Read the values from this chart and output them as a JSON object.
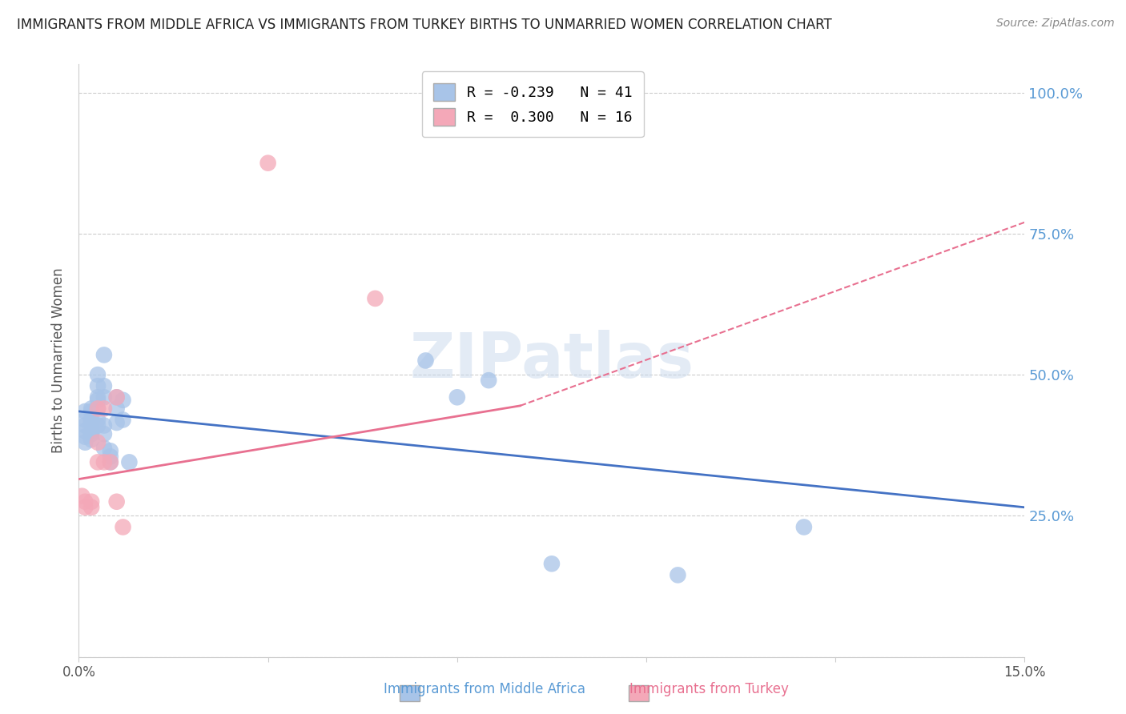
{
  "title": "IMMIGRANTS FROM MIDDLE AFRICA VS IMMIGRANTS FROM TURKEY BIRTHS TO UNMARRIED WOMEN CORRELATION CHART",
  "source": "Source: ZipAtlas.com",
  "ylabel": "Births to Unmarried Women",
  "y_ticks": [
    0.0,
    0.25,
    0.5,
    0.75,
    1.0
  ],
  "y_tick_labels_right": [
    "",
    "25.0%",
    "50.0%",
    "75.0%",
    "100.0%"
  ],
  "x_range": [
    0.0,
    0.15
  ],
  "y_range": [
    0.0,
    1.05
  ],
  "legend_blue_r": "R = -0.239",
  "legend_blue_n": "N = 41",
  "legend_pink_r": "R =  0.300",
  "legend_pink_n": "N = 16",
  "legend_blue_label": "Immigrants from Middle Africa",
  "legend_pink_label": "Immigrants from Turkey",
  "blue_color": "#a8c4e8",
  "pink_color": "#f4a8b8",
  "blue_line_color": "#4472c4",
  "pink_line_color": "#e87090",
  "watermark": "ZIPatlas",
  "blue_dots": [
    [
      0.001,
      0.435
    ],
    [
      0.001,
      0.42
    ],
    [
      0.001,
      0.41
    ],
    [
      0.001,
      0.4
    ],
    [
      0.001,
      0.39
    ],
    [
      0.001,
      0.38
    ],
    [
      0.002,
      0.44
    ],
    [
      0.002,
      0.435
    ],
    [
      0.002,
      0.42
    ],
    [
      0.002,
      0.415
    ],
    [
      0.002,
      0.4
    ],
    [
      0.002,
      0.395
    ],
    [
      0.002,
      0.385
    ],
    [
      0.003,
      0.5
    ],
    [
      0.003,
      0.48
    ],
    [
      0.003,
      0.46
    ],
    [
      0.003,
      0.455
    ],
    [
      0.003,
      0.44
    ],
    [
      0.003,
      0.42
    ],
    [
      0.003,
      0.41
    ],
    [
      0.004,
      0.535
    ],
    [
      0.004,
      0.48
    ],
    [
      0.004,
      0.46
    ],
    [
      0.004,
      0.41
    ],
    [
      0.004,
      0.395
    ],
    [
      0.004,
      0.37
    ],
    [
      0.005,
      0.365
    ],
    [
      0.005,
      0.355
    ],
    [
      0.005,
      0.345
    ],
    [
      0.006,
      0.46
    ],
    [
      0.006,
      0.44
    ],
    [
      0.006,
      0.415
    ],
    [
      0.007,
      0.455
    ],
    [
      0.007,
      0.42
    ],
    [
      0.008,
      0.345
    ],
    [
      0.055,
      0.525
    ],
    [
      0.06,
      0.46
    ],
    [
      0.065,
      0.49
    ],
    [
      0.075,
      0.165
    ],
    [
      0.095,
      0.145
    ],
    [
      0.115,
      0.23
    ]
  ],
  "pink_dots": [
    [
      0.0005,
      0.285
    ],
    [
      0.001,
      0.275
    ],
    [
      0.001,
      0.265
    ],
    [
      0.002,
      0.275
    ],
    [
      0.002,
      0.265
    ],
    [
      0.003,
      0.44
    ],
    [
      0.003,
      0.38
    ],
    [
      0.003,
      0.345
    ],
    [
      0.004,
      0.44
    ],
    [
      0.004,
      0.345
    ],
    [
      0.005,
      0.345
    ],
    [
      0.006,
      0.46
    ],
    [
      0.006,
      0.275
    ],
    [
      0.007,
      0.23
    ],
    [
      0.047,
      0.635
    ],
    [
      0.03,
      0.875
    ]
  ],
  "blue_line": [
    [
      0.0,
      0.435
    ],
    [
      0.15,
      0.265
    ]
  ],
  "pink_line_solid": [
    [
      0.0,
      0.315
    ],
    [
      0.07,
      0.445
    ]
  ],
  "pink_line_dashed": [
    [
      0.07,
      0.445
    ],
    [
      0.15,
      0.77
    ]
  ]
}
